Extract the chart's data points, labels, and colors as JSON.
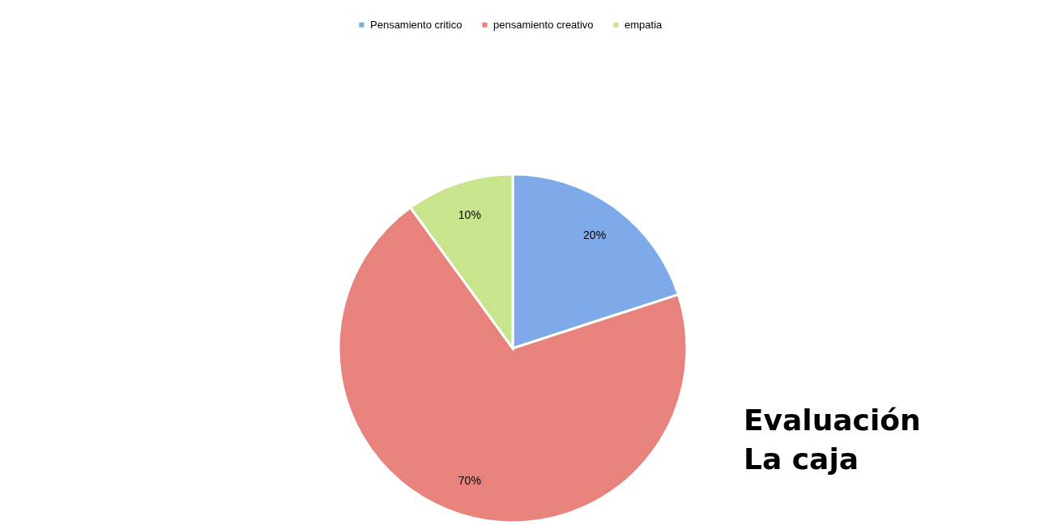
{
  "chart_data": {
    "type": "pie",
    "categories": [
      "Pensamiento critico",
      "pensamiento creativo",
      "empatia"
    ],
    "values": [
      20,
      70,
      10
    ],
    "colors": [
      "#7eaaea",
      "#e8827c",
      "#c8e48c"
    ],
    "value_labels": [
      "20%",
      "70%",
      "10%"
    ],
    "legend": "top",
    "annotations": [
      "Evaluación",
      "La caja"
    ]
  }
}
